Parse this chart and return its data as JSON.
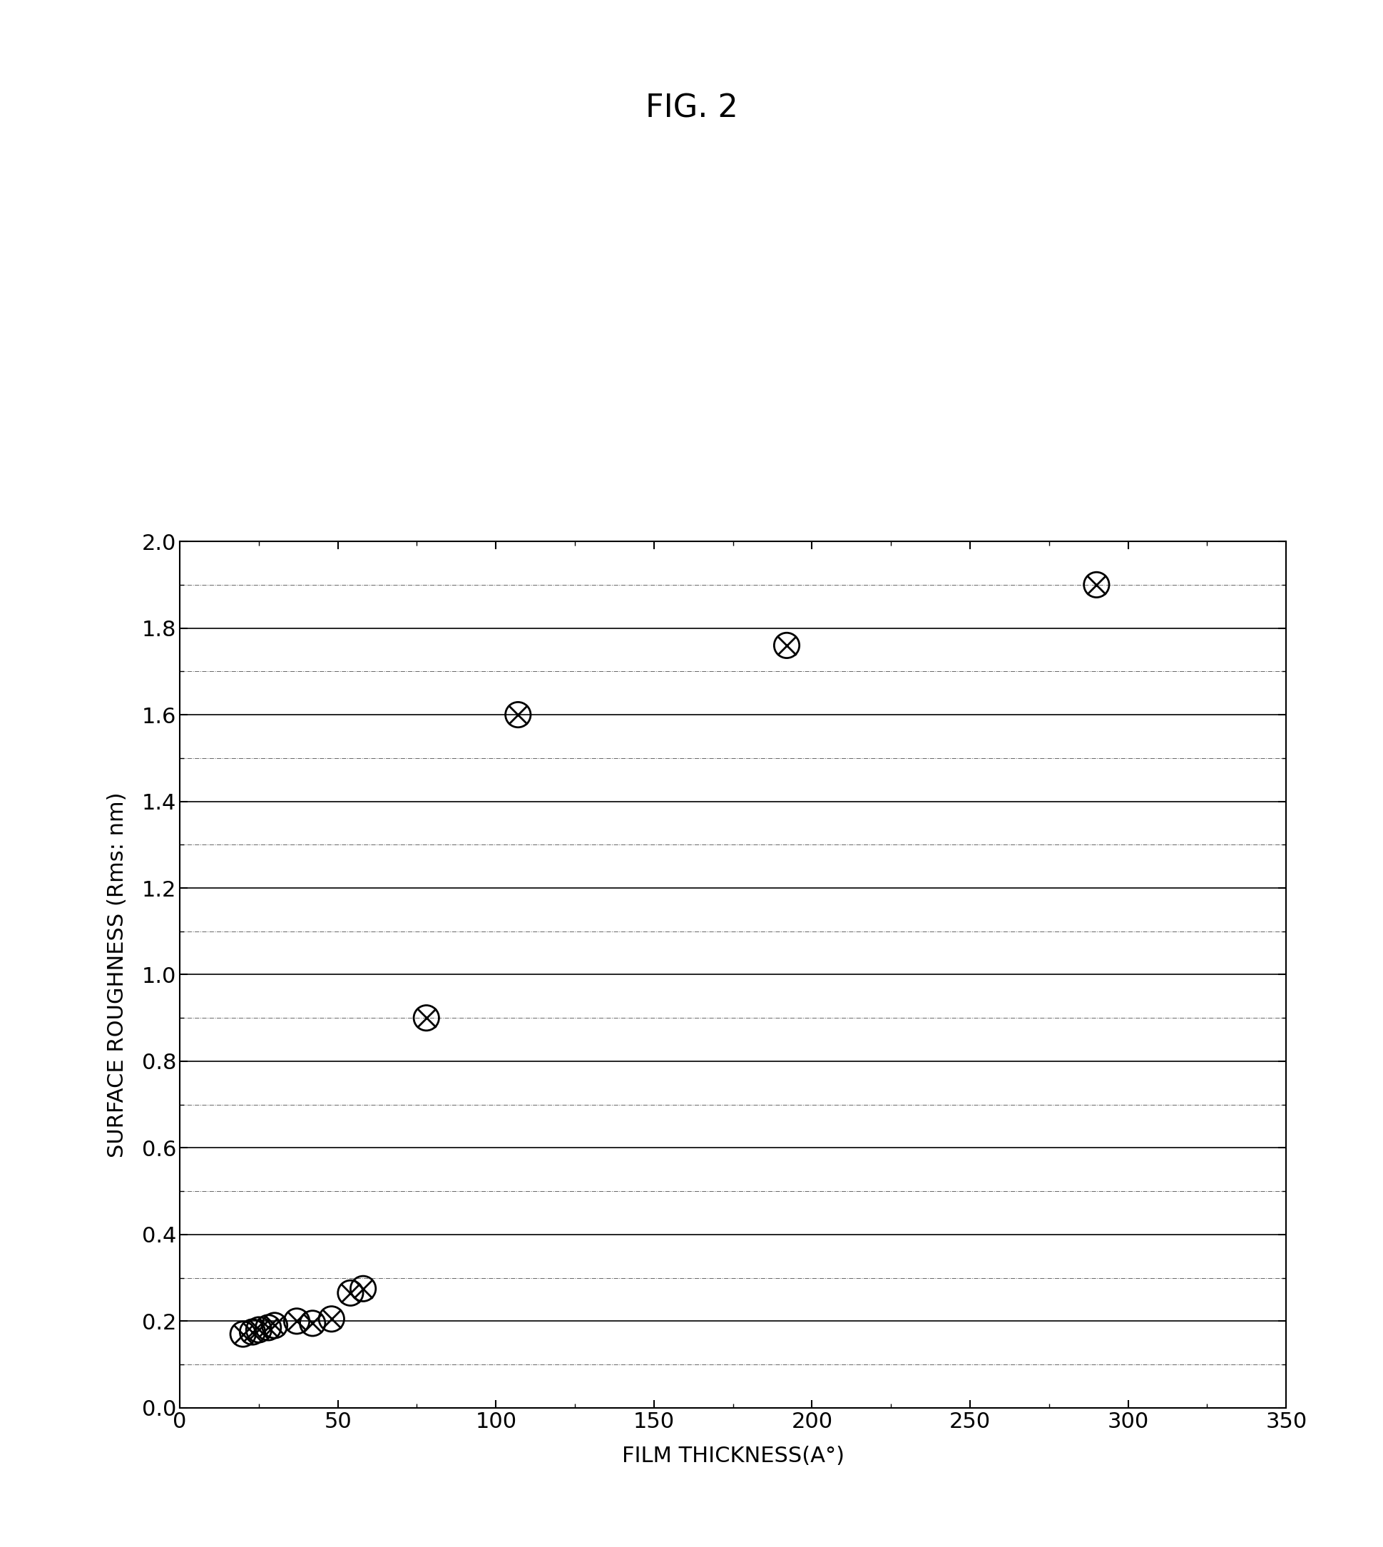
{
  "title": "FIG. 2",
  "xlabel": "FILM THICKNESS(A°)",
  "ylabel": "SURFACE ROUGHNESS (Rms: nm)",
  "xlim": [
    0,
    350
  ],
  "ylim": [
    0.0,
    2.0
  ],
  "xticks": [
    0,
    50,
    100,
    150,
    200,
    250,
    300,
    350
  ],
  "yticks": [
    0.0,
    0.2,
    0.4,
    0.6,
    0.8,
    1.0,
    1.2,
    1.4,
    1.6,
    1.8,
    2.0
  ],
  "data_x": [
    20,
    23,
    25,
    28,
    30,
    37,
    42,
    48,
    54,
    58,
    78,
    107,
    192,
    290
  ],
  "data_y": [
    0.17,
    0.175,
    0.18,
    0.185,
    0.19,
    0.2,
    0.195,
    0.205,
    0.265,
    0.275,
    0.9,
    1.6,
    1.76,
    1.9
  ],
  "marker_size": 12,
  "bg_color": "#ffffff",
  "text_color": "#000000",
  "title_fontsize": 32,
  "label_fontsize": 22,
  "tick_fontsize": 22
}
